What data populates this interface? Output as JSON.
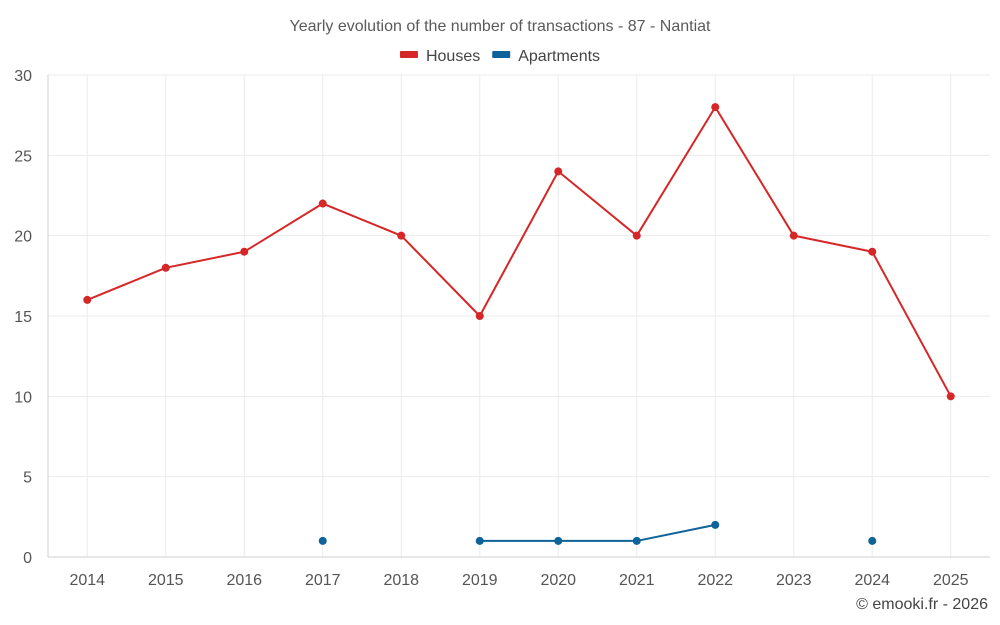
{
  "chart_data": {
    "type": "line",
    "title": "Yearly evolution of the number of transactions - 87 - Nantiat",
    "categories": [
      "2014",
      "2015",
      "2016",
      "2017",
      "2018",
      "2019",
      "2020",
      "2021",
      "2022",
      "2023",
      "2024",
      "2025"
    ],
    "series": [
      {
        "name": "Houses",
        "color": "#d62728",
        "values": [
          16,
          18,
          19,
          22,
          20,
          15,
          24,
          20,
          28,
          20,
          19,
          10
        ]
      },
      {
        "name": "Apartments",
        "color": "#0e6399",
        "values": [
          null,
          null,
          null,
          1,
          null,
          1,
          1,
          1,
          2,
          null,
          1,
          null
        ]
      }
    ],
    "ylim": [
      0,
      30
    ],
    "yticks": [
      0,
      5,
      10,
      15,
      20,
      25,
      30
    ],
    "xlabel": "",
    "ylabel": "",
    "grid": true,
    "legend": "top-center"
  },
  "credit": "© emooki.fr - 2026"
}
